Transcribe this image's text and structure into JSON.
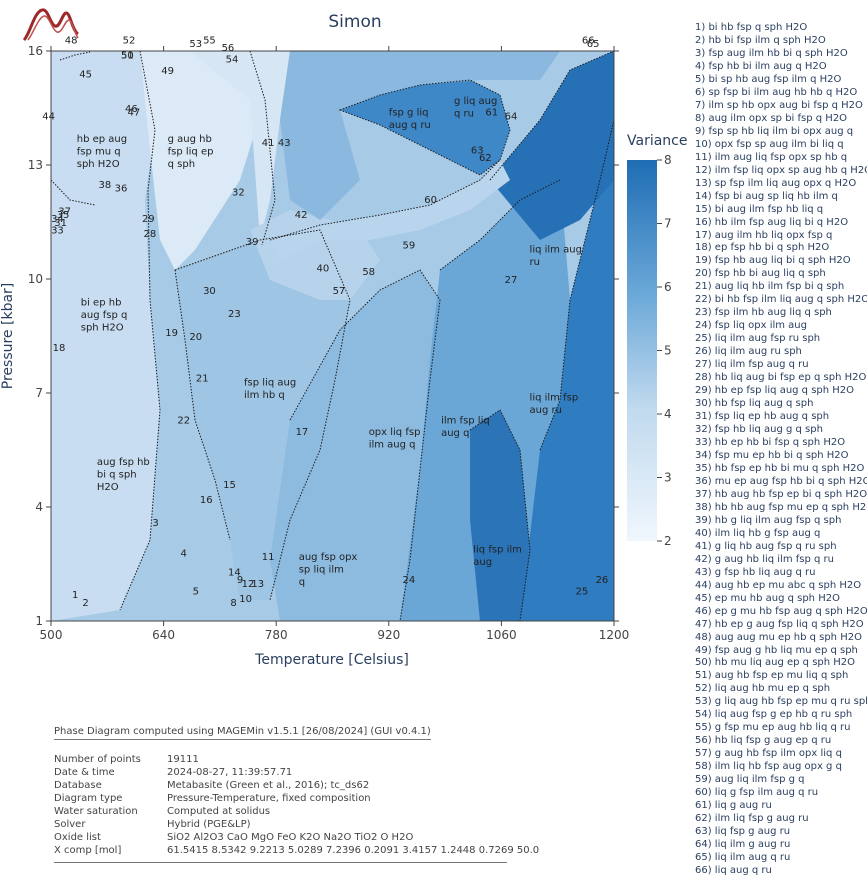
{
  "window_title": "Simon",
  "chart_data": {
    "type": "heatmap",
    "title": "Simon",
    "xlabel": "Temperature [Celsius]",
    "ylabel": "Pressure [kbar]",
    "xlim": [
      500,
      1200
    ],
    "ylim": [
      1,
      16
    ],
    "x_ticks": [
      "500",
      "640",
      "780",
      "920",
      "1060",
      "1200"
    ],
    "y_ticks": [
      "1",
      "4",
      "7",
      "10",
      "13",
      "16"
    ],
    "colorbar": {
      "title": "Variance",
      "min": 2,
      "max": 8,
      "ticks": [
        "2",
        "3",
        "4",
        "5",
        "6",
        "7",
        "8"
      ],
      "color_low": "#f0f7fd",
      "color_high": "#1f6db4"
    },
    "field_labels": [
      {
        "id": "1",
        "T": 530,
        "P": 1.6
      },
      {
        "id": "2",
        "T": 543,
        "P": 1.4
      },
      {
        "id": "3",
        "T": 630,
        "P": 3.5
      },
      {
        "id": "4",
        "T": 665,
        "P": 2.7
      },
      {
        "id": "5",
        "T": 680,
        "P": 1.7
      },
      {
        "id": "8",
        "T": 727,
        "P": 1.4
      },
      {
        "id": "9",
        "T": 735,
        "P": 2.0
      },
      {
        "id": "10",
        "T": 742,
        "P": 1.5
      },
      {
        "id": "11",
        "T": 770,
        "P": 2.6
      },
      {
        "id": "12",
        "T": 745,
        "P": 1.9
      },
      {
        "id": "13",
        "T": 757,
        "P": 1.9
      },
      {
        "id": "14",
        "T": 728,
        "P": 2.2
      },
      {
        "id": "15",
        "T": 722,
        "P": 4.5
      },
      {
        "id": "16",
        "T": 693,
        "P": 4.1
      },
      {
        "id": "17",
        "T": 812,
        "P": 5.9
      },
      {
        "id": "18",
        "T": 510,
        "P": 8.1
      },
      {
        "id": "19",
        "T": 650,
        "P": 8.5
      },
      {
        "id": "20",
        "T": 680,
        "P": 8.4
      },
      {
        "id": "21",
        "T": 688,
        "P": 7.3
      },
      {
        "id": "22",
        "T": 665,
        "P": 6.2
      },
      {
        "id": "23",
        "T": 728,
        "P": 9.0
      },
      {
        "id": "24",
        "T": 945,
        "P": 2.0
      },
      {
        "id": "25",
        "T": 1160,
        "P": 1.7
      },
      {
        "id": "26",
        "T": 1185,
        "P": 2.0
      },
      {
        "id": "27",
        "T": 1072,
        "P": 9.9
      },
      {
        "id": "28",
        "T": 623,
        "P": 11.1
      },
      {
        "id": "29",
        "T": 621,
        "P": 11.5
      },
      {
        "id": "30",
        "T": 697,
        "P": 9.6
      },
      {
        "id": "31",
        "T": 512,
        "P": 11.4
      },
      {
        "id": "32",
        "T": 733,
        "P": 12.2
      },
      {
        "id": "33",
        "T": 508,
        "P": 11.2
      },
      {
        "id": "34",
        "T": 508,
        "P": 11.5
      },
      {
        "id": "35",
        "T": 515,
        "P": 11.6
      },
      {
        "id": "36",
        "T": 587,
        "P": 12.3
      },
      {
        "id": "37",
        "T": 517,
        "P": 11.7
      },
      {
        "id": "38",
        "T": 567,
        "P": 12.4
      },
      {
        "id": "39",
        "T": 750,
        "P": 10.9
      },
      {
        "id": "40",
        "T": 838,
        "P": 10.2
      },
      {
        "id": "41",
        "T": 770,
        "P": 13.5
      },
      {
        "id": "42",
        "T": 811,
        "P": 11.6
      },
      {
        "id": "43",
        "T": 790,
        "P": 13.5
      },
      {
        "id": "44",
        "T": 497,
        "P": 14.2
      },
      {
        "id": "45",
        "T": 543,
        "P": 15.3
      },
      {
        "id": "46",
        "T": 600,
        "P": 14.4
      },
      {
        "id": "47",
        "T": 603,
        "P": 14.3
      },
      {
        "id": "48",
        "T": 525,
        "P": 16.2
      },
      {
        "id": "49",
        "T": 645,
        "P": 15.4
      },
      {
        "id": "50",
        "T": 595,
        "P": 15.8
      },
      {
        "id": "51",
        "T": 595,
        "P": 15.8
      },
      {
        "id": "52",
        "T": 597,
        "P": 16.2
      },
      {
        "id": "53",
        "T": 680,
        "P": 16.1
      },
      {
        "id": "54",
        "T": 725,
        "P": 15.7
      },
      {
        "id": "55",
        "T": 697,
        "P": 16.2
      },
      {
        "id": "56",
        "T": 720,
        "P": 16.0
      },
      {
        "id": "57",
        "T": 858,
        "P": 9.6
      },
      {
        "id": "58",
        "T": 895,
        "P": 10.1
      },
      {
        "id": "59",
        "T": 945,
        "P": 10.8
      },
      {
        "id": "60",
        "T": 972,
        "P": 12.0
      },
      {
        "id": "61",
        "T": 1048,
        "P": 14.3
      },
      {
        "id": "62",
        "T": 1040,
        "P": 13.1
      },
      {
        "id": "63",
        "T": 1030,
        "P": 13.3
      },
      {
        "id": "64",
        "T": 1072,
        "P": 14.2
      },
      {
        "id": "65",
        "T": 1174,
        "P": 16.1
      },
      {
        "id": "66",
        "T": 1168,
        "P": 16.2
      }
    ],
    "field_annotations": [
      {
        "text": [
          "hb ep aug",
          "fsp mu q",
          "sph H2O"
        ],
        "T": 532,
        "P": 13.6
      },
      {
        "text": [
          "g aug hb",
          "fsp liq ep",
          "q sph"
        ],
        "T": 645,
        "P": 13.6
      },
      {
        "text": [
          "bi ep hb",
          "aug fsp q",
          "sph H2O"
        ],
        "T": 537,
        "P": 9.3
      },
      {
        "text": [
          "fsp liq aug",
          "ilm hb q"
        ],
        "T": 740,
        "P": 7.2
      },
      {
        "text": [
          "aug fsp hb",
          "bi q sph",
          "H2O"
        ],
        "T": 557,
        "P": 5.1
      },
      {
        "text": [
          "aug fsp opx",
          "sp liq ilm",
          "q"
        ],
        "T": 808,
        "P": 2.6
      },
      {
        "text": [
          "opx liq fsp",
          "ilm aug q"
        ],
        "T": 895,
        "P": 5.9
      },
      {
        "text": [
          "ilm fsp liq",
          "aug q"
        ],
        "T": 985,
        "P": 6.2
      },
      {
        "text": [
          "liq ilm fsp",
          "aug ru"
        ],
        "T": 1095,
        "P": 6.8
      },
      {
        "text": [
          "liq fsp ilm",
          "aug"
        ],
        "T": 1025,
        "P": 2.8
      },
      {
        "text": [
          "liq ilm aug",
          "ru"
        ],
        "T": 1095,
        "P": 10.7
      },
      {
        "text": [
          "fsp g liq",
          "aug q ru"
        ],
        "T": 920,
        "P": 14.3
      },
      {
        "text": [
          "g liq aug",
          "q ru"
        ],
        "T": 1001,
        "P": 14.6
      }
    ],
    "legend_entries": [
      "1) bi hb fsp q sph H2O",
      "2) hb bi fsp ilm q sph H2O",
      "3) fsp aug ilm hb bi q sph H2O",
      "4) fsp hb bi ilm aug q H2O",
      "5) bi sp hb aug fsp ilm q H2O",
      "6) sp fsp bi ilm aug hb hb q H2O",
      "7) ilm sp hb opx aug bi fsp q H2O",
      "8) aug ilm opx sp bi fsp q H2O",
      "9) fsp sp hb liq ilm bi opx aug q",
      "10) opx fsp sp aug ilm bi liq q",
      "11) ilm aug liq fsp opx sp hb q",
      "12) ilm fsp liq opx sp aug hb q H2O",
      "13) sp fsp ilm liq aug opx q H2O",
      "14) fsp bi aug sp liq hb ilm q",
      "15) bi aug ilm fsp hb liq q",
      "16) hb ilm fsp aug liq bi q H2O",
      "17) aug ilm hb liq opx fsp q",
      "18) ep fsp hb bi q sph H2O",
      "19) fsp hb aug liq bi q sph H2O",
      "20) fsp hb bi aug liq q sph",
      "21) aug liq hb ilm fsp bi q sph",
      "22) bi hb fsp ilm liq aug q sph H2O",
      "23) fsp ilm hb aug liq q sph",
      "24) fsp liq opx ilm aug",
      "25) liq ilm aug fsp ru sph",
      "26) liq ilm aug ru sph",
      "27) liq ilm fsp aug q ru",
      "28) hb liq aug bi fsp ep q sph H2O",
      "29) hb ep fsp liq aug q sph H2O",
      "30) hb fsp liq aug q sph",
      "31) fsp liq ep hb aug q sph",
      "32) fsp hb liq aug g q sph",
      "33) hb ep hb bi fsp q sph H2O",
      "34) fsp mu ep hb bi q sph H2O",
      "35) hb fsp ep hb bi mu q sph H2O",
      "36) mu ep aug fsp hb bi q sph H2O",
      "37) hb aug hb fsp ep bi q sph H2O",
      "38) hb hb aug fsp mu ep q sph H2O",
      "39) hb g liq ilm aug fsp q sph",
      "40) ilm liq hb g fsp aug q",
      "41) g liq hb aug fsp q ru sph",
      "42) g aug hb liq ilm fsp q ru",
      "43) g fsp hb liq aug q ru",
      "44) aug hb ep mu abc q sph H2O",
      "45) ep mu hb aug q sph H2O",
      "46) ep g mu hb fsp aug q sph H2O",
      "47) hb ep g aug fsp liq q sph H2O",
      "48) aug aug mu ep hb q sph H2O",
      "49) fsp aug g hb liq mu ep q sph",
      "50) hb mu liq aug ep q sph H2O",
      "51) aug hb fsp ep mu liq q sph",
      "52) liq aug hb mu ep q sph",
      "53) g liq aug hb fsp ep mu q ru sph",
      "54) liq aug fsp g ep hb q ru sph",
      "55) g fsp mu ep aug hb liq q ru",
      "56) hb liq fsp g aug ep q ru",
      "57) g aug hb fsp ilm opx liq q",
      "58) ilm liq hb fsp aug opx g q",
      "59) aug liq ilm fsp g q",
      "60) liq g fsp ilm aug q ru",
      "61) liq g aug ru",
      "62) ilm liq fsp g aug ru",
      "63) liq fsp g aug ru",
      "64) liq ilm g aug ru",
      "65) liq ilm aug q ru",
      "66) liq aug q ru"
    ]
  },
  "info": {
    "title": "Phase Diagram computed using MAGEMin v1.5.1 [26/08/2024] (GUI v0.4.1)",
    "rows": [
      {
        "key": "Number of points",
        "value": "19111"
      },
      {
        "key": "Date & time",
        "value": "2024-08-27, 11:39:57.71"
      },
      {
        "key": "Database",
        "value": "Metabasite (Green et al., 2016); tc_ds62"
      },
      {
        "key": "Diagram type",
        "value": "Pressure-Temperature, fixed composition"
      },
      {
        "key": "Water saturation",
        "value": "Computed at solidus"
      },
      {
        "key": "Solver",
        "value": "Hybrid (PGE&LP)"
      },
      {
        "key": "Oxide list",
        "value": "SiO2 Al2O3 CaO MgO FeO K2O Na2O TiO2 O H2O"
      },
      {
        "key": "X comp [mol]",
        "value": "61.5415 8.5342 9.2213 5.0289 7.2396 0.2091 3.4157 1.2448 0.7269 50.0"
      }
    ]
  },
  "colors": {
    "border_dots": "#1a1a1a",
    "annotation_line": "#ffffff"
  }
}
